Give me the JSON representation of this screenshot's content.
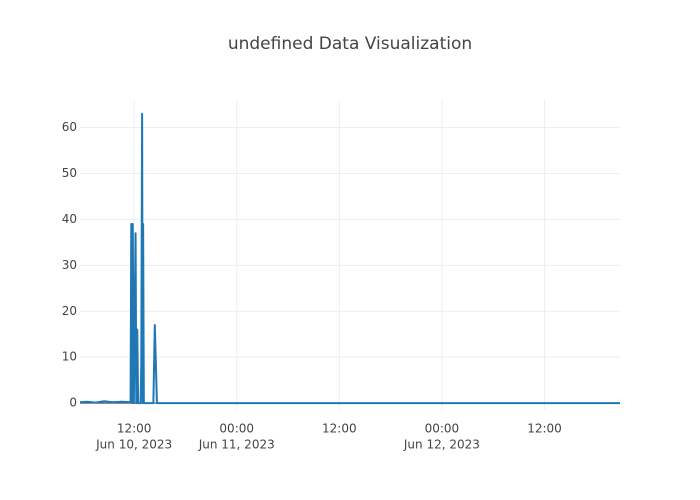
{
  "chart_data": {
    "type": "line",
    "title": "undefined Data Visualization",
    "x": [
      "2023-06-10 05:40",
      "2023-06-10 06:30",
      "2023-06-10 07:30",
      "2023-06-10 08:30",
      "2023-06-10 09:30",
      "2023-06-10 10:30",
      "2023-06-10 11:35",
      "2023-06-10 11:40",
      "2023-06-10 11:45",
      "2023-06-10 11:50",
      "2023-06-10 11:58",
      "2023-06-10 12:10",
      "2023-06-10 12:15",
      "2023-06-10 12:22",
      "2023-06-10 12:28",
      "2023-06-10 12:45",
      "2023-06-10 12:50",
      "2023-06-10 12:56",
      "2023-06-10 13:00",
      "2023-06-10 13:03",
      "2023-06-10 13:08",
      "2023-06-10 14:15",
      "2023-06-10 14:25",
      "2023-06-10 14:40",
      "2023-06-11 00:00",
      "2023-06-12 00:00",
      "2023-06-12 20:50"
    ],
    "values": [
      0.2,
      0.3,
      0.1,
      0.4,
      0.2,
      0.3,
      0.2,
      39,
      0,
      39,
      0,
      37,
      0,
      16,
      0,
      0,
      8,
      63,
      0,
      39,
      0,
      0,
      17,
      0,
      0,
      0,
      0
    ],
    "color": "#1f77b4",
    "xlim": [
      "2023-06-10 05:40",
      "2023-06-12 20:50"
    ],
    "xticks": [
      {
        "value": "2023-06-10 12:00",
        "label": "12:00",
        "sublabel": "Jun 10, 2023"
      },
      {
        "value": "2023-06-11 00:00",
        "label": "00:00",
        "sublabel": "Jun 11, 2023"
      },
      {
        "value": "2023-06-11 12:00",
        "label": "12:00"
      },
      {
        "value": "2023-06-12 00:00",
        "label": "00:00",
        "sublabel": "Jun 12, 2023"
      },
      {
        "value": "2023-06-12 12:00",
        "label": "12:00"
      }
    ],
    "ylim": [
      -1.5,
      66
    ],
    "yticks": [
      0,
      10,
      20,
      30,
      40,
      50,
      60
    ],
    "grid": true
  }
}
